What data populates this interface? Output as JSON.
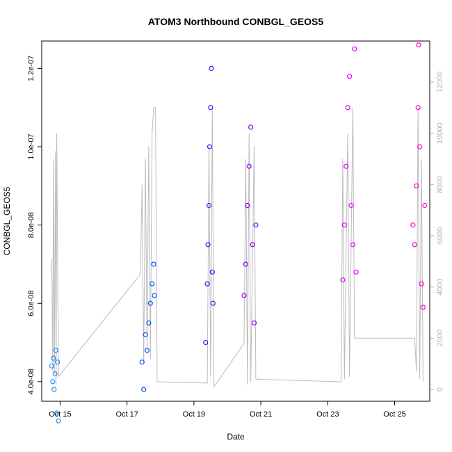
{
  "chart_data": {
    "type": "scatter",
    "title": "ATOM3 Northbound CONBGL_GEOS5",
    "xlabel": "Date",
    "ylabel": "CONBGL_GEOS5",
    "x_ticks": [
      "Oct 15",
      "Oct 17",
      "Oct 19",
      "Oct 21",
      "Oct 23",
      "Oct 25"
    ],
    "x_range_days": [
      14.45,
      26.05
    ],
    "ylim": [
      3.5e-08,
      1.27e-07
    ],
    "y_ticks": [
      4e-08,
      6e-08,
      8e-08,
      1e-07,
      1.2e-07
    ],
    "y_tick_labels": [
      "4.0e-08",
      "6.0e-08",
      "8.0e-08",
      "1.0e-07",
      "1.2e-07"
    ],
    "secondary_axis": {
      "color": "#b3b3b3",
      "range": [
        0,
        12000
      ],
      "ticks": [
        0,
        2000,
        4000,
        6000,
        8000,
        10000,
        12000
      ]
    },
    "grid": false,
    "legend": "none",
    "point_marker": "open-circle",
    "series": [
      {
        "color": "#1e90ff",
        "points": [
          [
            14.75,
            4.4e-08
          ],
          [
            14.78,
            4e-08
          ],
          [
            14.8,
            4.6e-08
          ],
          [
            14.82,
            3.8e-08
          ],
          [
            14.85,
            4.2e-08
          ],
          [
            14.87,
            4.8e-08
          ],
          [
            14.9,
            3.2e-08
          ],
          [
            14.92,
            4.5e-08
          ],
          [
            14.95,
            3e-08
          ]
        ]
      },
      {
        "color": "#0055ff",
        "points": [
          [
            17.45,
            4.5e-08
          ],
          [
            17.5,
            3.8e-08
          ],
          [
            17.55,
            5.2e-08
          ],
          [
            17.6,
            4.8e-08
          ],
          [
            17.65,
            5.5e-08
          ],
          [
            17.7,
            6e-08
          ],
          [
            17.75,
            6.5e-08
          ],
          [
            17.8,
            7e-08
          ],
          [
            17.82,
            6.2e-08
          ]
        ]
      },
      {
        "color": "#2222ff",
        "points": [
          [
            19.35,
            5e-08
          ],
          [
            19.4,
            6.5e-08
          ],
          [
            19.42,
            7.5e-08
          ],
          [
            19.45,
            8.5e-08
          ],
          [
            19.47,
            1e-07
          ],
          [
            19.5,
            1.1e-07
          ],
          [
            19.52,
            1.2e-07
          ],
          [
            19.55,
            6.8e-08
          ],
          [
            19.57,
            6e-08
          ]
        ]
      },
      {
        "color": "#8800ff",
        "points": [
          [
            20.5,
            6.2e-08
          ],
          [
            20.55,
            7e-08
          ],
          [
            20.6,
            8.5e-08
          ],
          [
            20.65,
            9.5e-08
          ],
          [
            20.7,
            1.05e-07
          ],
          [
            20.75,
            7.5e-08
          ],
          [
            20.8,
            5.5e-08
          ],
          [
            20.85,
            8e-08
          ]
        ]
      },
      {
        "color": "#dd00ff",
        "points": [
          [
            23.45,
            6.6e-08
          ],
          [
            23.5,
            8e-08
          ],
          [
            23.55,
            9.5e-08
          ],
          [
            23.6,
            1.1e-07
          ],
          [
            23.65,
            1.18e-07
          ],
          [
            23.7,
            8.5e-08
          ],
          [
            23.75,
            7.5e-08
          ],
          [
            23.8,
            1.25e-07
          ],
          [
            23.85,
            6.8e-08
          ]
        ]
      },
      {
        "color": "#ff00cc",
        "points": [
          [
            25.55,
            8e-08
          ],
          [
            25.6,
            7.5e-08
          ],
          [
            25.65,
            9e-08
          ],
          [
            25.7,
            1.1e-07
          ],
          [
            25.72,
            1.26e-07
          ],
          [
            25.75,
            1e-07
          ],
          [
            25.8,
            6.5e-08
          ],
          [
            25.85,
            5.9e-08
          ],
          [
            25.9,
            8.5e-08
          ]
        ]
      }
    ],
    "secondary_line": {
      "color": "#bbbbbb",
      "points": [
        [
          14.75,
          5100
        ],
        [
          14.78,
          700
        ],
        [
          14.8,
          9000
        ],
        [
          14.83,
          600
        ],
        [
          14.86,
          9300
        ],
        [
          14.88,
          200
        ],
        [
          14.9,
          10000
        ],
        [
          14.95,
          500
        ],
        [
          17.4,
          4500
        ],
        [
          17.45,
          8000
        ],
        [
          17.5,
          1000
        ],
        [
          17.55,
          9000
        ],
        [
          17.6,
          1500
        ],
        [
          17.65,
          9500
        ],
        [
          17.7,
          1200
        ],
        [
          17.75,
          10000
        ],
        [
          17.8,
          11000
        ],
        [
          17.85,
          11000
        ],
        [
          17.9,
          300
        ],
        [
          19.4,
          250
        ],
        [
          19.45,
          9500
        ],
        [
          19.5,
          500
        ],
        [
          19.55,
          11000
        ],
        [
          19.6,
          100
        ],
        [
          20.5,
          1800
        ],
        [
          20.55,
          9000
        ],
        [
          20.6,
          200
        ],
        [
          20.65,
          10000
        ],
        [
          20.7,
          300
        ],
        [
          20.8,
          9500
        ],
        [
          20.85,
          400
        ],
        [
          23.4,
          300
        ],
        [
          23.45,
          9000
        ],
        [
          23.5,
          400
        ],
        [
          23.6,
          10000
        ],
        [
          23.65,
          500
        ],
        [
          23.75,
          11000
        ],
        [
          23.8,
          2000
        ],
        [
          25.6,
          2000
        ],
        [
          25.65,
          700
        ],
        [
          25.7,
          11000
        ],
        [
          25.75,
          400
        ],
        [
          25.8,
          9000
        ],
        [
          25.85,
          300
        ]
      ]
    }
  }
}
